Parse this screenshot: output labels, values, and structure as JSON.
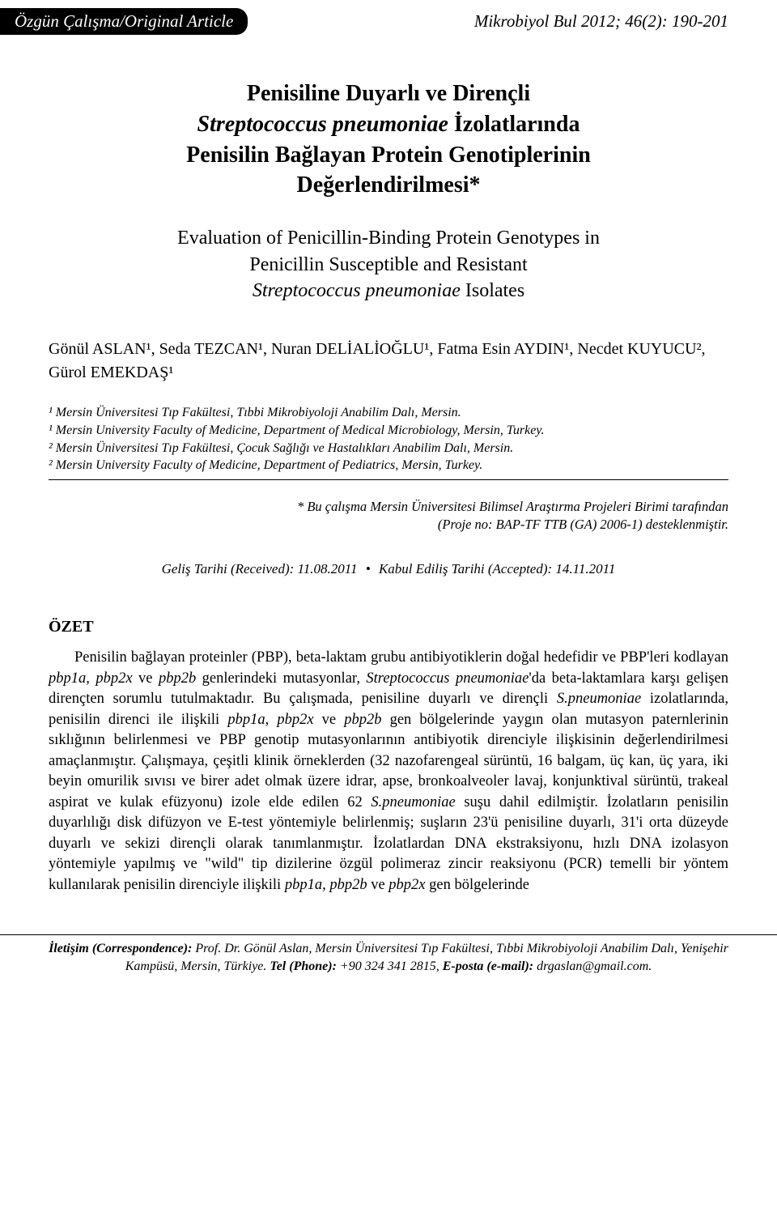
{
  "header": {
    "label": "Özgün Çalışma/Original Article",
    "journal": "Mikrobiyol Bul 2012; 46(2): 190-201"
  },
  "title_main": {
    "line1_a": "Penisiline Duyarlı ve Dirençli",
    "line2_ital": "Streptococcus pneumoniae",
    "line2_b": " İzolatlarında",
    "line3": "Penisilin Bağlayan Protein Genotiplerinin",
    "line4": "Değerlendirilmesi*"
  },
  "title_sub": {
    "line1": "Evaluation of Penicillin-Binding Protein Genotypes in",
    "line2a": "Penicillin Susceptible and Resistant",
    "line3_ital": "Streptococcus pneumoniae",
    "line3_b": " Isolates"
  },
  "authors": "Gönül ASLAN¹, Seda TEZCAN¹, Nuran DELİALİOĞLU¹, Fatma Esin AYDIN¹, Necdet KUYUCU², Gürol EMEKDAŞ¹",
  "affils": {
    "l1": "¹ Mersin Üniversitesi Tıp Fakültesi, Tıbbi Mikrobiyoloji Anabilim Dalı, Mersin.",
    "l2": "¹ Mersin University Faculty of Medicine, Department of Medical Microbiology, Mersin, Turkey.",
    "l3": "² Mersin Üniversitesi Tıp Fakültesi, Çocuk Sağlığı ve Hastalıkları Anabilim Dalı, Mersin.",
    "l4": "² Mersin University Faculty of Medicine, Department of Pediatrics, Mersin, Turkey."
  },
  "note": {
    "l1": "* Bu çalışma Mersin Üniversitesi Bilimsel Araştırma Projeleri Birimi tarafından",
    "l2": "(Proje no: BAP-TF TTB (GA) 2006-1) desteklenmiştir."
  },
  "dates": {
    "received": "Geliş Tarihi (Received): 11.08.2011",
    "accepted": "Kabul Ediliş Tarihi (Accepted): 14.11.2011"
  },
  "ozet": {
    "heading": "ÖZET",
    "p1a": "Penisilin bağlayan proteinler (PBP), beta-laktam grubu antibiyotiklerin doğal hedefidir ve PBP'leri kodlayan ",
    "p1b_ital": "pbp1a, pbp2x",
    "p1c": " ve ",
    "p1d_ital": "pbp2b",
    "p1e": " genlerindeki mutasyonlar, ",
    "p1f_ital": "Streptococcus pneumoniae",
    "p1g": "'da beta-laktamlara karşı gelişen dirençten sorumlu tutulmaktadır. Bu çalışmada, penisiline duyarlı ve dirençli ",
    "p1h_ital": "S.pneumoniae",
    "p1i": " izolatlarında, penisilin direnci ile ilişkili ",
    "p1j_ital": "pbp1a, pbp2x",
    "p1k": " ve ",
    "p1l_ital": "pbp2b",
    "p1m": " gen bölgelerinde yaygın olan mutasyon paternlerinin sıklığının belirlenmesi ve PBP genotip mutasyonlarının antibiyotik direnciyle ilişkisinin değerlendirilmesi amaçlanmıştır. Çalışmaya, çeşitli klinik örneklerden (32 nazofarengeal sürüntü, 16 balgam, üç kan, üç yara, iki beyin omurilik sıvısı ve birer adet olmak üzere idrar, apse, bronkoalveoler lavaj, konjunktival sürüntü, trakeal aspirat ve kulak efüzyonu) izole elde edilen 62 ",
    "p1n_ital": "S.pneumoniae",
    "p1o": " suşu dahil edilmiştir. İzolatların penisilin duyarlılığı disk difüzyon ve E-test yöntemiyle belirlenmiş; suşların 23'ü penisiline duyarlı, 31'i orta düzeyde duyarlı ve sekizi dirençli olarak tanımlanmıştır. İzolatlardan DNA ekstraksiyonu, hızlı DNA izolasyon yöntemiyle yapılmış ve \"wild\" tip dizilerine özgül polimeraz zincir reaksiyonu (PCR) temelli bir yöntem kullanılarak penisilin direnciyle ilişkili ",
    "p1p_ital": "pbp1a, pbp2b",
    "p1q": " ve ",
    "p1r_ital": "pbp2x",
    "p1s": " gen bölgelerinde"
  },
  "footer": {
    "label": "İletişim (Correspondence): ",
    "text1": "Prof. Dr. Gönül Aslan, Mersin Üniversitesi Tıp Fakültesi, Tıbbi Mikrobiyoloji Anabilim Dalı, Yenişehir Kampüsü, Mersin, Türkiye. ",
    "tel_label": "Tel (Phone): ",
    "tel": "+90 324 341 2815, ",
    "email_label": "E-posta (e-mail): ",
    "email": "drgaslan@gmail.com."
  },
  "style": {
    "page_bg": "#ffffff",
    "text_color": "#000000",
    "header_bg": "#000000",
    "header_fg": "#ffffff",
    "rule_color": "#000000",
    "body_font": "Times New Roman",
    "title_fontsize_pt": 21,
    "subtitle_fontsize_pt": 18,
    "body_fontsize_pt": 14,
    "affil_fontsize_pt": 12,
    "footer_fontsize_pt": 12
  }
}
